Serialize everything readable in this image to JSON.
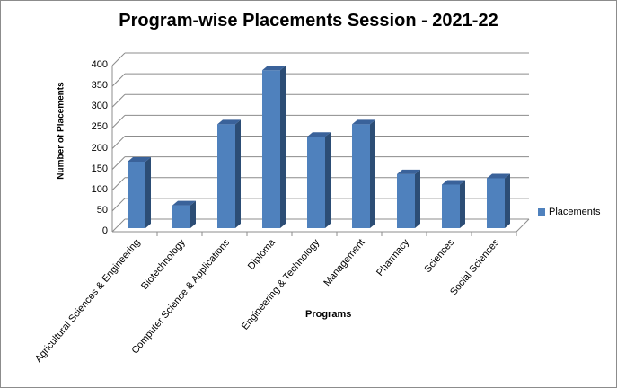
{
  "chart_data": {
    "type": "bar",
    "title": "Program-wise Placements Session - 2021-22",
    "xlabel": "Programs",
    "ylabel": "Number of Placements",
    "ylim": [
      0,
      400
    ],
    "yticks": [
      0,
      50,
      100,
      150,
      200,
      250,
      300,
      350,
      400
    ],
    "grid": true,
    "legend_position": "right",
    "categories": [
      "Agricultural Sciences & Engineering",
      "Biotechnology",
      "Computer Science & Applications",
      "Diploma",
      "Engineering & Technology",
      "Management",
      "Pharmacy",
      "Sciences",
      "Social Sciences"
    ],
    "series": [
      {
        "name": "Placements",
        "color": "#4f81bd",
        "values": [
          160,
          55,
          250,
          380,
          220,
          250,
          130,
          105,
          120
        ]
      }
    ]
  },
  "ticks": [
    "400",
    "350",
    "300",
    "250",
    "200",
    "150",
    "100",
    "50",
    "0"
  ]
}
